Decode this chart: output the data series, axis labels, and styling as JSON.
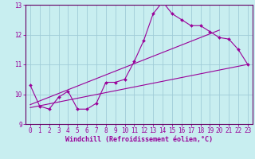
{
  "xlabel": "Windchill (Refroidissement éolien,°C)",
  "ylabel": "",
  "background_color": "#c8eef0",
  "grid_color": "#a0ccd8",
  "line_color": "#990099",
  "spine_color": "#660066",
  "xlim": [
    -0.5,
    23.5
  ],
  "ylim": [
    9,
    13
  ],
  "yticks": [
    9,
    10,
    11,
    12,
    13
  ],
  "xticks": [
    0,
    1,
    2,
    3,
    4,
    5,
    6,
    7,
    8,
    9,
    10,
    11,
    12,
    13,
    14,
    15,
    16,
    17,
    18,
    19,
    20,
    21,
    22,
    23
  ],
  "main_data_x": [
    0,
    1,
    2,
    3,
    4,
    5,
    6,
    7,
    8,
    9,
    10,
    11,
    12,
    13,
    14,
    15,
    16,
    17,
    18,
    19,
    20,
    21,
    22,
    23
  ],
  "main_data_y": [
    10.3,
    9.6,
    9.5,
    9.9,
    10.1,
    9.5,
    9.5,
    9.7,
    10.4,
    10.4,
    10.5,
    11.1,
    11.8,
    12.7,
    13.1,
    12.7,
    12.5,
    12.3,
    12.3,
    12.1,
    11.9,
    11.85,
    11.5,
    11.0
  ],
  "trend1_x": [
    0,
    23
  ],
  "trend1_y": [
    9.55,
    11.0
  ],
  "trend2_x": [
    0,
    20
  ],
  "trend2_y": [
    9.65,
    12.15
  ],
  "tick_fontsize": 5.5,
  "xlabel_fontsize": 6.0
}
